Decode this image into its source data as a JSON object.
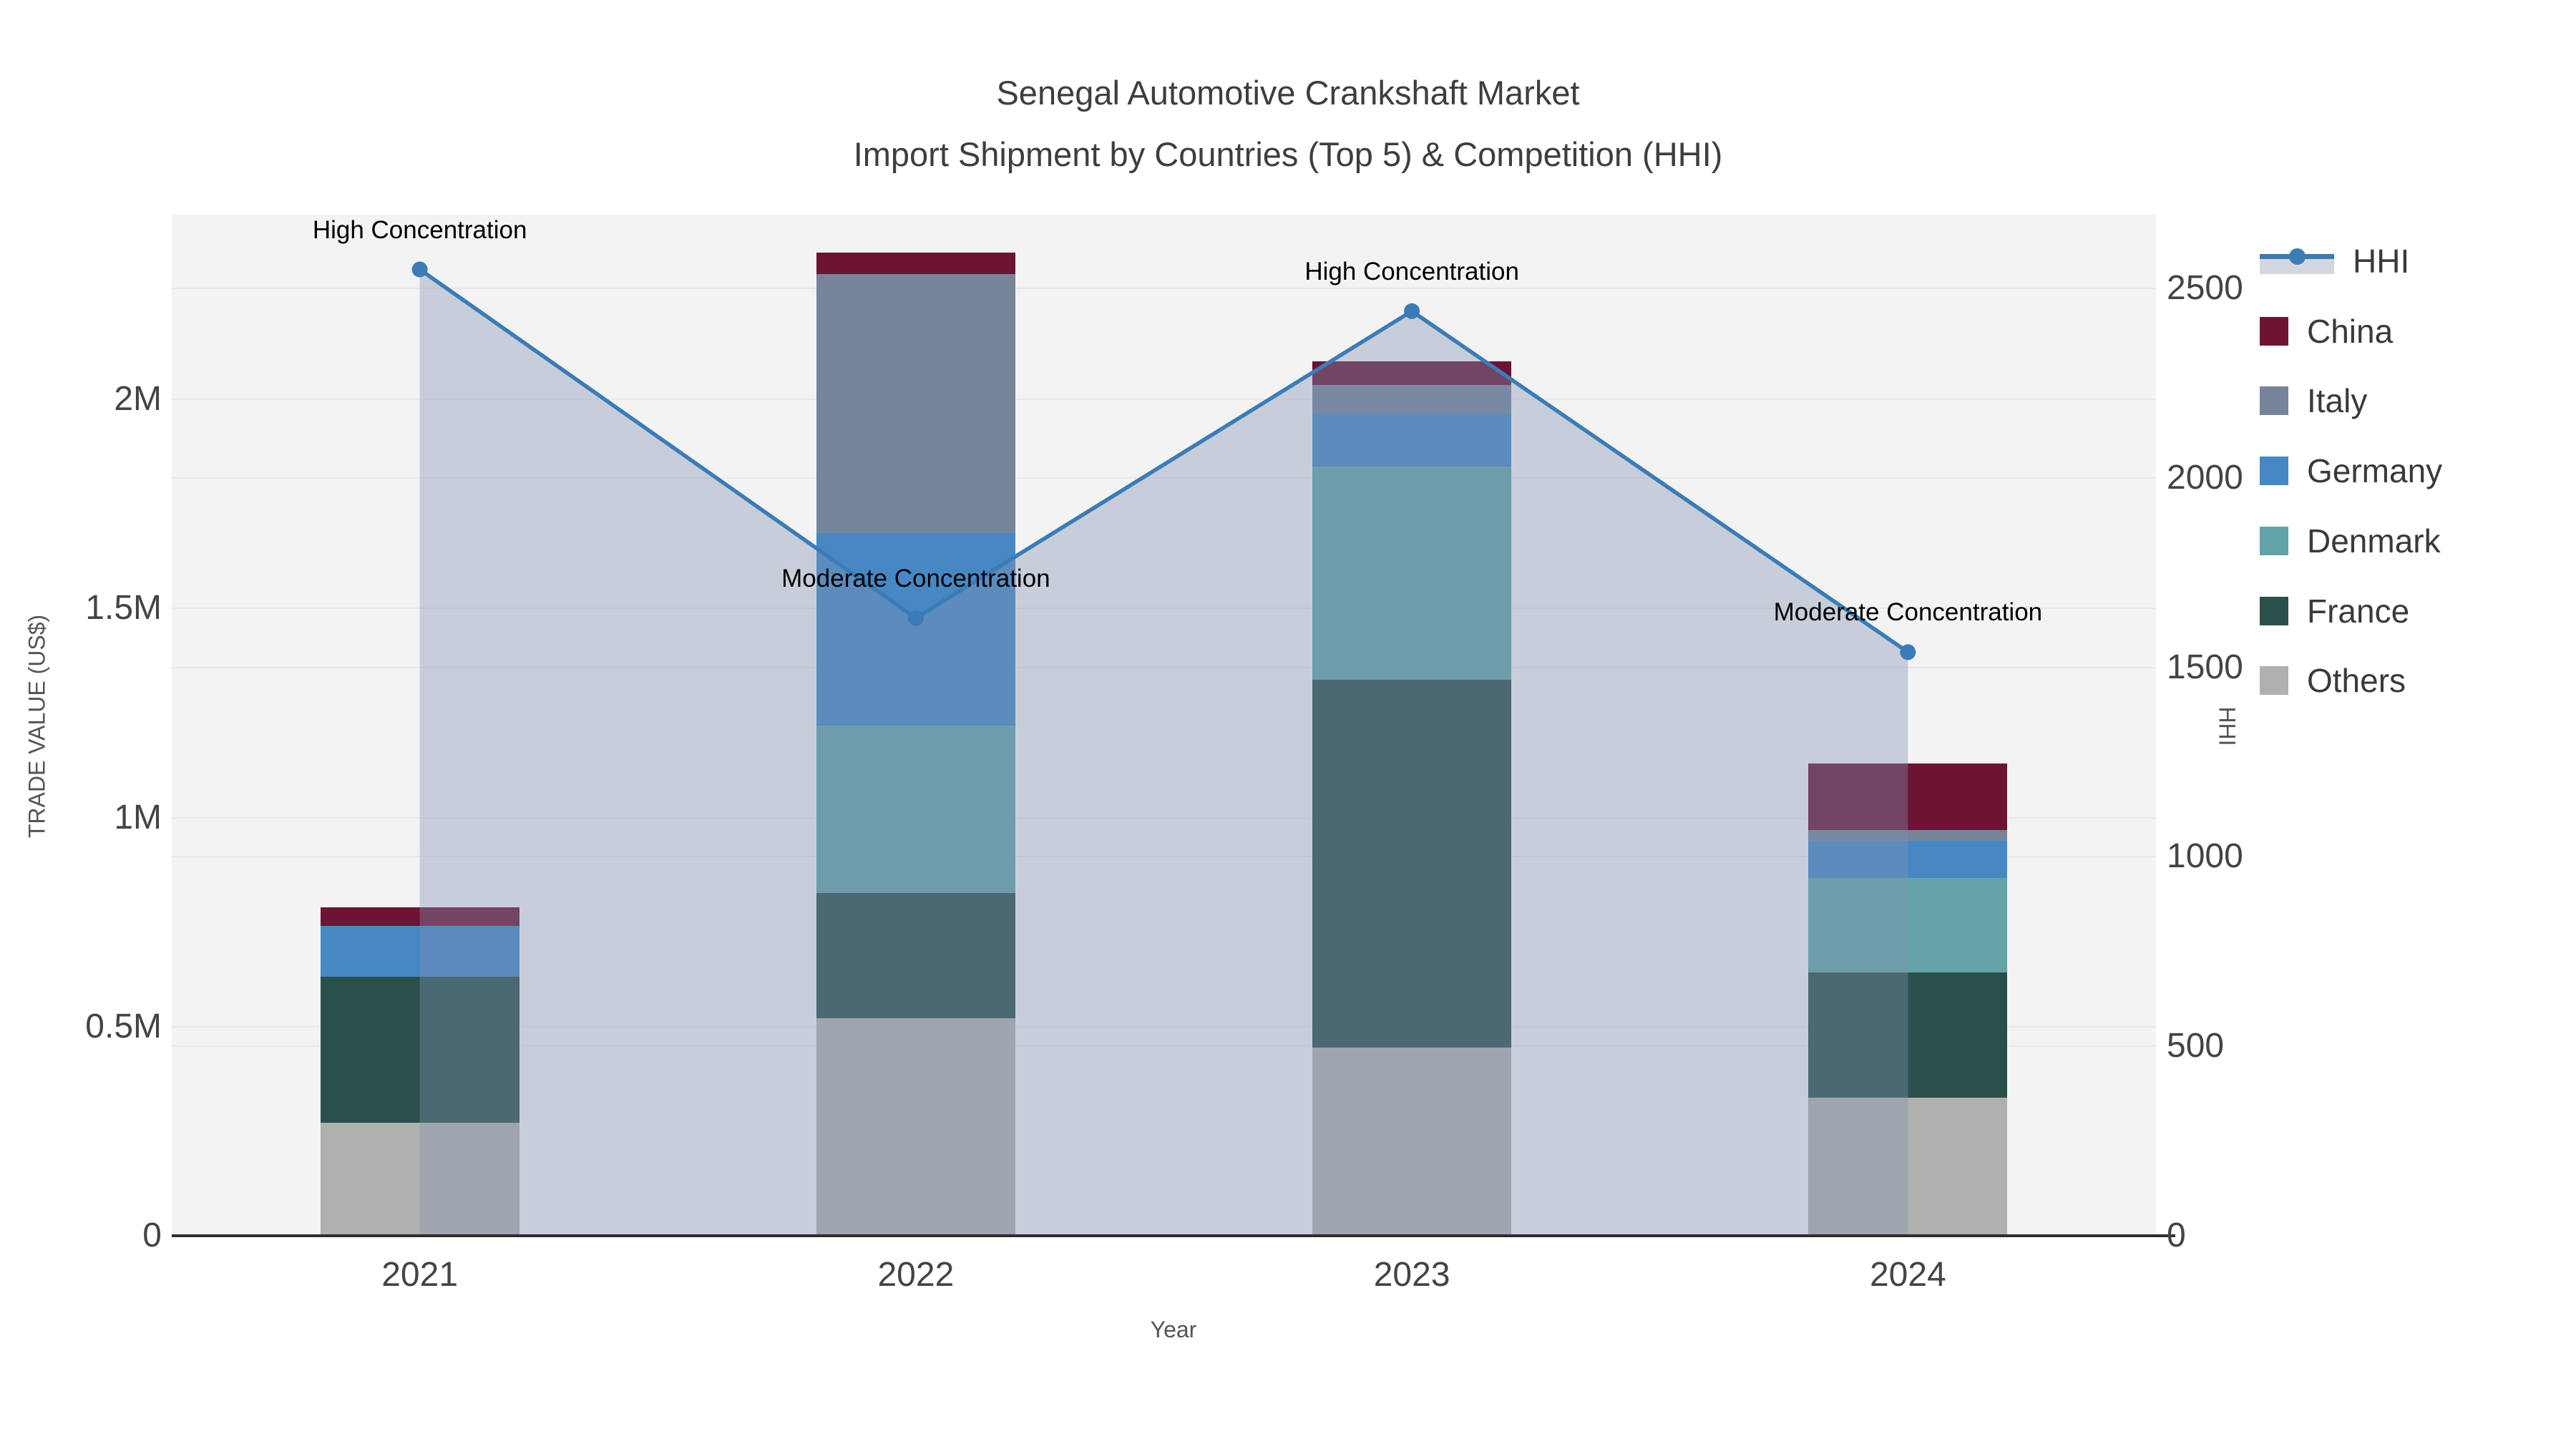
{
  "title": {
    "line1": "Senegal Automotive Crankshaft Market",
    "line2": "Import Shipment by Countries (Top 5) & Competition (HHI)"
  },
  "chart_data": {
    "type": "bar",
    "subtype": "stacked-bar-with-line-area",
    "categories": [
      "2021",
      "2022",
      "2023",
      "2024"
    ],
    "bar_series": [
      {
        "name": "Others",
        "color": "#b0b0ae",
        "values": [
          270000,
          520000,
          450000,
          330000
        ]
      },
      {
        "name": "France",
        "color": "#2a504c",
        "values": [
          350000,
          300000,
          880000,
          300000
        ]
      },
      {
        "name": "Denmark",
        "color": "#62a3a8",
        "values": [
          0,
          400000,
          510000,
          225000
        ]
      },
      {
        "name": "Germany",
        "color": "#4688c4",
        "values": [
          120000,
          460000,
          125000,
          90000
        ]
      },
      {
        "name": "Italy",
        "color": "#76849a",
        "values": [
          0,
          620000,
          70000,
          25000
        ]
      },
      {
        "name": "China",
        "color": "#6d1434",
        "values": [
          45000,
          50000,
          55000,
          160000
        ]
      }
    ],
    "line_series": {
      "name": "HHI",
      "color": "#3a7cb8",
      "area_fill": "rgba(130,147,175,0.38)",
      "values": [
        2550,
        1630,
        2440,
        1540
      ]
    },
    "annotations": [
      {
        "category": "2021",
        "text": "High Concentration"
      },
      {
        "category": "2022",
        "text": "Moderate Concentration"
      },
      {
        "category": "2023",
        "text": "High Concentration"
      },
      {
        "category": "2024",
        "text": "Moderate Concentration"
      }
    ],
    "left_axis": {
      "title": "TRADE VALUE (US$)",
      "tick_labels": [
        "0",
        "0.5M",
        "1M",
        "1.5M",
        "2M"
      ],
      "tick_values": [
        0,
        500000,
        1000000,
        1500000,
        2000000
      ],
      "range": [
        0,
        2440000
      ],
      "grid": true
    },
    "right_axis": {
      "title": "HHI",
      "tick_labels": [
        "0",
        "500",
        "1000",
        "1500",
        "2000",
        "2500"
      ],
      "tick_values": [
        0,
        500,
        1000,
        1500,
        2000,
        2500
      ],
      "range": [
        0,
        2695
      ],
      "grid": true
    },
    "x_axis": {
      "title": "Year"
    },
    "legend": {
      "position": "right",
      "entries": [
        "HHI",
        "China",
        "Italy",
        "Germany",
        "Denmark",
        "France",
        "Others"
      ]
    }
  }
}
